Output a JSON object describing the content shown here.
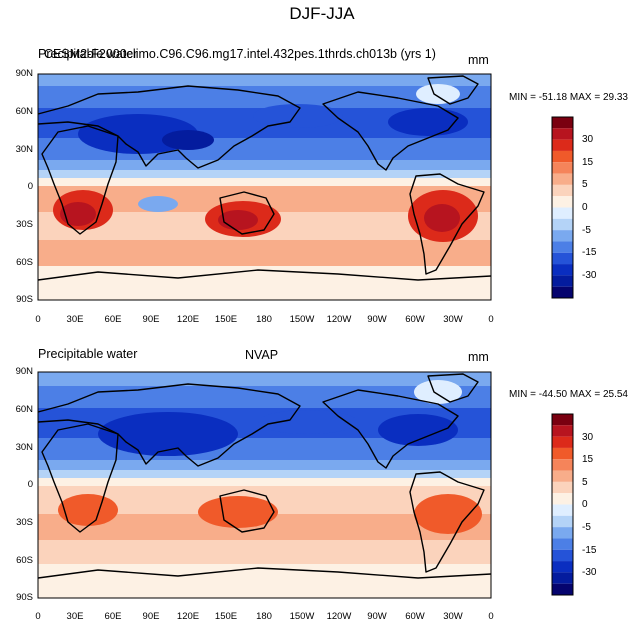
{
  "figure": {
    "title": "DJF-JJA",
    "y_tick_labels": [
      "90N",
      "60N",
      "30N",
      "0",
      "30S",
      "60S",
      "90S"
    ],
    "x_tick_labels": [
      "0",
      "30E",
      "60E",
      "90E",
      "120E",
      "150E",
      "180",
      "150W",
      "120W",
      "90W",
      "60W",
      "30W",
      "0"
    ]
  },
  "colorbar": {
    "levels": [
      "30",
      "15",
      "5",
      "0",
      "-5",
      "-15",
      "-30"
    ],
    "colors": [
      "#7a0010",
      "#b7141f",
      "#dc2a1a",
      "#f05a2a",
      "#f5845a",
      "#f8ad8a",
      "#fbd3bc",
      "#fdf1e4",
      "#dfeeff",
      "#b4d3f7",
      "#7aa9ef",
      "#4c7fe6",
      "#2553d8",
      "#0a2ec0",
      "#041c9e",
      "#05046e"
    ]
  },
  "panels": [
    {
      "left_label": "Precipitable water",
      "case_label": "CESM2-F2000climo.C96.C96.mg17.intel.432pes.1thrds.ch013b (yrs 1)",
      "units": "mm",
      "min_label": "MIN = ",
      "min_value": "-51.18",
      "max_label": "MAX = ",
      "max_value": "29.33"
    },
    {
      "left_label": "Precipitable water",
      "case_label": "NVAP",
      "units": "mm",
      "min_label": "MIN = ",
      "min_value": "-44.50",
      "max_label": "MAX = ",
      "max_value": "25.54"
    }
  ]
}
